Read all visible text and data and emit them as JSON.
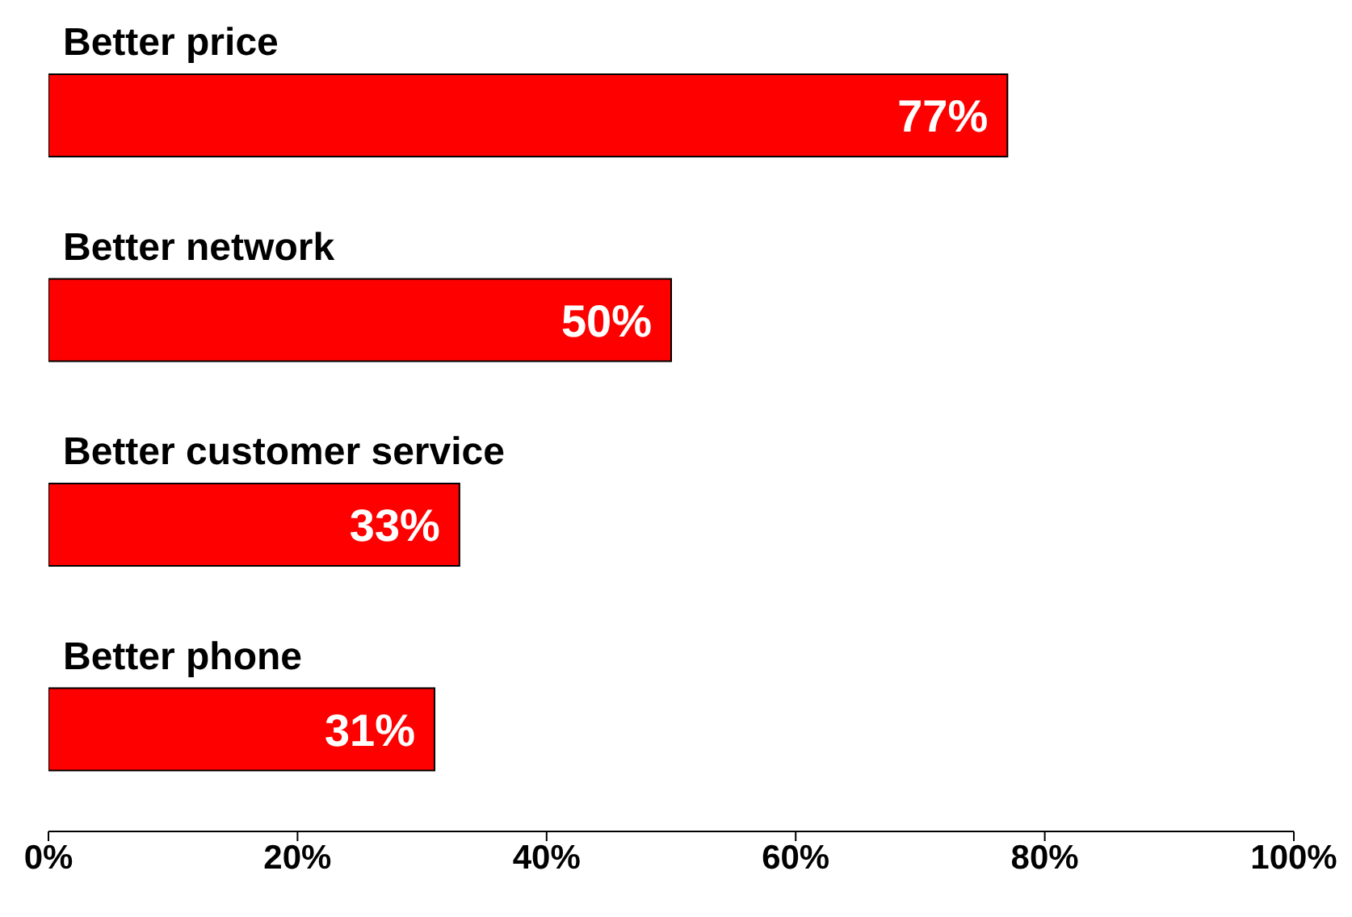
{
  "chart_data": {
    "type": "bar",
    "orientation": "horizontal",
    "categories": [
      "Better price",
      "Better network",
      "Better customer service",
      "Better phone"
    ],
    "values": [
      77,
      50,
      33,
      31
    ],
    "color": "#ff0000",
    "value_labels": [
      "77%",
      "50%",
      "33%",
      "31%"
    ],
    "xlim": [
      0,
      100
    ],
    "xticks": [
      {
        "value": 0,
        "label": "0%"
      },
      {
        "value": 20,
        "label": "20%"
      },
      {
        "value": 40,
        "label": "40%"
      },
      {
        "value": 60,
        "label": "60%"
      },
      {
        "value": 80,
        "label": "80%"
      },
      {
        "value": 100,
        "label": "100%"
      }
    ],
    "grid": false
  }
}
